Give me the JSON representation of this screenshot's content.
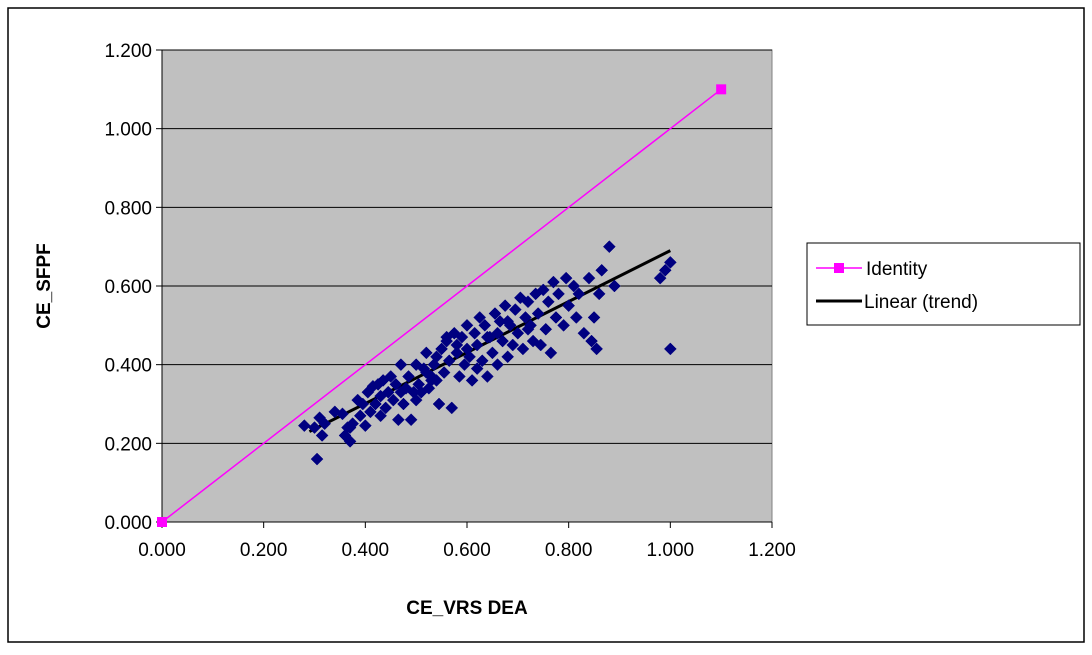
{
  "chart_data": {
    "type": "scatter",
    "title": "",
    "xlabel": "CE_VRS DEA",
    "ylabel": "CE_SFPF",
    "xlim": [
      0,
      1.2
    ],
    "ylim": [
      0,
      1.2
    ],
    "x_ticks": [
      "0.000",
      "0.200",
      "0.400",
      "0.600",
      "0.800",
      "1.000",
      "1.200"
    ],
    "y_ticks": [
      "0.000",
      "0.200",
      "0.400",
      "0.600",
      "0.800",
      "1.000",
      "1.200"
    ],
    "grid": "horizontal",
    "legend_position": "right",
    "plot_background": "#c0c0c0",
    "series": [
      {
        "kind": "scatter",
        "color": "#000080",
        "marker": "diamond",
        "points": [
          [
            0.28,
            0.245
          ],
          [
            0.3,
            0.24
          ],
          [
            0.305,
            0.16
          ],
          [
            0.31,
            0.265
          ],
          [
            0.315,
            0.22
          ],
          [
            0.32,
            0.25
          ],
          [
            0.34,
            0.28
          ],
          [
            0.355,
            0.275
          ],
          [
            0.365,
            0.24
          ],
          [
            0.37,
            0.205
          ],
          [
            0.375,
            0.25
          ],
          [
            0.385,
            0.31
          ],
          [
            0.39,
            0.27
          ],
          [
            0.395,
            0.3
          ],
          [
            0.4,
            0.245
          ],
          [
            0.405,
            0.33
          ],
          [
            0.41,
            0.28
          ],
          [
            0.415,
            0.345
          ],
          [
            0.42,
            0.3
          ],
          [
            0.425,
            0.35
          ],
          [
            0.43,
            0.32
          ],
          [
            0.435,
            0.36
          ],
          [
            0.44,
            0.29
          ],
          [
            0.445,
            0.33
          ],
          [
            0.45,
            0.37
          ],
          [
            0.455,
            0.31
          ],
          [
            0.46,
            0.35
          ],
          [
            0.465,
            0.26
          ],
          [
            0.47,
            0.4
          ],
          [
            0.475,
            0.3
          ],
          [
            0.48,
            0.34
          ],
          [
            0.485,
            0.37
          ],
          [
            0.49,
            0.26
          ],
          [
            0.495,
            0.33
          ],
          [
            0.5,
            0.4
          ],
          [
            0.505,
            0.35
          ],
          [
            0.51,
            0.33
          ],
          [
            0.515,
            0.39
          ],
          [
            0.52,
            0.43
          ],
          [
            0.525,
            0.34
          ],
          [
            0.53,
            0.37
          ],
          [
            0.535,
            0.4
          ],
          [
            0.54,
            0.36
          ],
          [
            0.545,
            0.3
          ],
          [
            0.55,
            0.44
          ],
          [
            0.555,
            0.38
          ],
          [
            0.56,
            0.46
          ],
          [
            0.565,
            0.41
          ],
          [
            0.57,
            0.29
          ],
          [
            0.575,
            0.48
          ],
          [
            0.58,
            0.43
          ],
          [
            0.585,
            0.37
          ],
          [
            0.59,
            0.47
          ],
          [
            0.595,
            0.4
          ],
          [
            0.6,
            0.5
          ],
          [
            0.605,
            0.42
          ],
          [
            0.61,
            0.36
          ],
          [
            0.615,
            0.48
          ],
          [
            0.62,
            0.45
          ],
          [
            0.625,
            0.52
          ],
          [
            0.63,
            0.41
          ],
          [
            0.635,
            0.5
          ],
          [
            0.64,
            0.37
          ],
          [
            0.645,
            0.47
          ],
          [
            0.65,
            0.43
          ],
          [
            0.655,
            0.53
          ],
          [
            0.66,
            0.4
          ],
          [
            0.665,
            0.51
          ],
          [
            0.67,
            0.46
          ],
          [
            0.675,
            0.55
          ],
          [
            0.68,
            0.42
          ],
          [
            0.685,
            0.5
          ],
          [
            0.69,
            0.45
          ],
          [
            0.695,
            0.54
          ],
          [
            0.7,
            0.48
          ],
          [
            0.705,
            0.57
          ],
          [
            0.71,
            0.44
          ],
          [
            0.715,
            0.52
          ],
          [
            0.72,
            0.56
          ],
          [
            0.725,
            0.5
          ],
          [
            0.73,
            0.46
          ],
          [
            0.735,
            0.58
          ],
          [
            0.74,
            0.53
          ],
          [
            0.745,
            0.45
          ],
          [
            0.75,
            0.59
          ],
          [
            0.755,
            0.49
          ],
          [
            0.76,
            0.56
          ],
          [
            0.765,
            0.43
          ],
          [
            0.77,
            0.61
          ],
          [
            0.775,
            0.52
          ],
          [
            0.78,
            0.58
          ],
          [
            0.79,
            0.5
          ],
          [
            0.795,
            0.62
          ],
          [
            0.8,
            0.55
          ],
          [
            0.81,
            0.6
          ],
          [
            0.815,
            0.52
          ],
          [
            0.82,
            0.58
          ],
          [
            0.83,
            0.48
          ],
          [
            0.84,
            0.62
          ],
          [
            0.845,
            0.46
          ],
          [
            0.85,
            0.52
          ],
          [
            0.855,
            0.44
          ],
          [
            0.86,
            0.58
          ],
          [
            0.865,
            0.64
          ],
          [
            0.88,
            0.7
          ],
          [
            0.89,
            0.6
          ],
          [
            0.98,
            0.62
          ],
          [
            0.99,
            0.64
          ],
          [
            1.0,
            0.66
          ],
          [
            1.0,
            0.44
          ],
          [
            0.52,
            0.38
          ],
          [
            0.58,
            0.45
          ],
          [
            0.62,
            0.39
          ],
          [
            0.66,
            0.48
          ],
          [
            0.54,
            0.42
          ],
          [
            0.6,
            0.44
          ],
          [
            0.64,
            0.47
          ],
          [
            0.68,
            0.51
          ],
          [
            0.72,
            0.49
          ],
          [
            0.56,
            0.47
          ],
          [
            0.47,
            0.33
          ],
          [
            0.43,
            0.27
          ],
          [
            0.37,
            0.24
          ],
          [
            0.36,
            0.22
          ],
          [
            0.5,
            0.31
          ],
          [
            0.53,
            0.36
          ]
        ]
      },
      {
        "kind": "line",
        "name": "Identity",
        "color": "#ff00ff",
        "marker": "square",
        "points": [
          [
            0.0,
            0.0
          ],
          [
            1.1,
            1.1
          ]
        ]
      },
      {
        "kind": "line",
        "name": "Linear (trend)",
        "color": "#000000",
        "marker": "none",
        "points": [
          [
            0.29,
            0.23
          ],
          [
            1.0,
            0.69
          ]
        ]
      }
    ]
  }
}
